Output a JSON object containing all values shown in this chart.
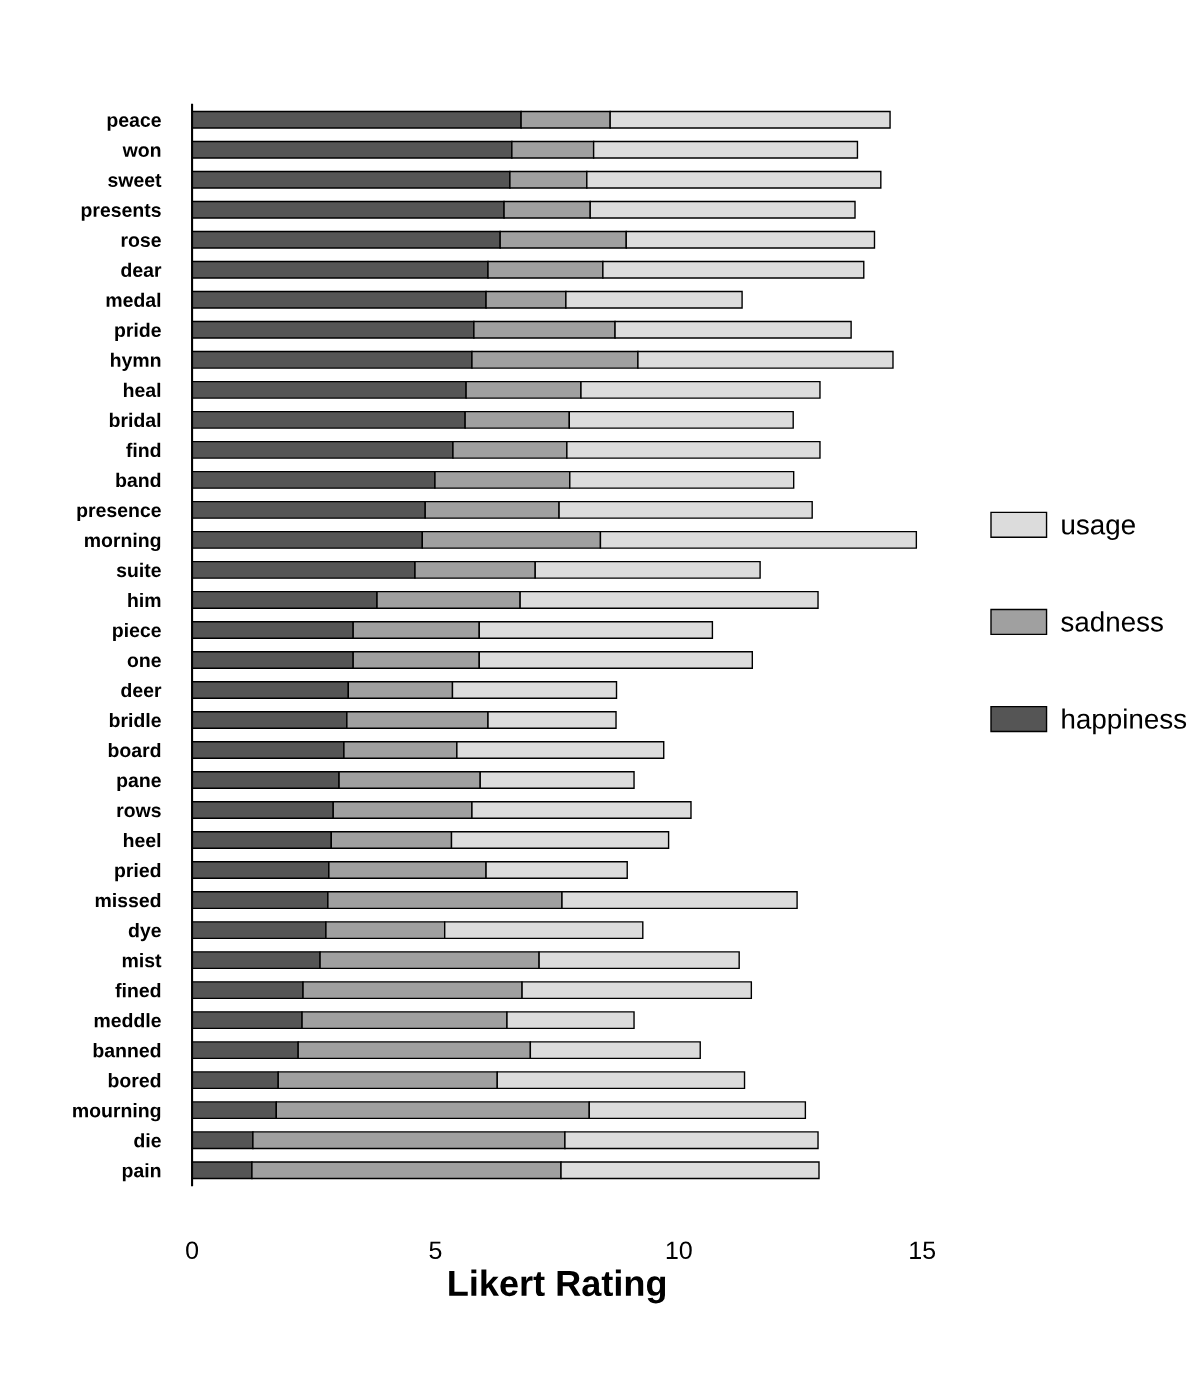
{
  "chart_data": {
    "type": "bar",
    "orientation": "horizontal",
    "stacked": true,
    "xlabel": "Likert Rating",
    "xlim": [
      0,
      15
    ],
    "xticks": [
      0,
      5,
      10,
      15
    ],
    "legend": "right",
    "grid": false,
    "categories": [
      "peace",
      "won",
      "sweet",
      "presents",
      "rose",
      "dear",
      "medal",
      "pride",
      "hymn",
      "heal",
      "bridal",
      "find",
      "band",
      "presence",
      "morning",
      "suite",
      "him",
      "piece",
      "one",
      "deer",
      "bridle",
      "board",
      "pane",
      "rows",
      "heel",
      "pried",
      "missed",
      "dye",
      "mist",
      "fined",
      "meddle",
      "banned",
      "bored",
      "mourning",
      "die",
      "pain"
    ],
    "series": [
      {
        "name": "happiness",
        "color": "#555555",
        "values": [
          6.76,
          6.57,
          6.53,
          6.41,
          6.33,
          6.08,
          6.04,
          5.79,
          5.75,
          5.63,
          5.61,
          5.36,
          4.99,
          4.79,
          4.73,
          4.58,
          3.8,
          3.31,
          3.31,
          3.21,
          3.18,
          3.12,
          3.02,
          2.9,
          2.86,
          2.81,
          2.79,
          2.75,
          2.63,
          2.28,
          2.26,
          2.18,
          1.77,
          1.73,
          1.25,
          1.23
        ]
      },
      {
        "name": "sadness",
        "color": "#a0a0a0",
        "values": [
          1.83,
          1.68,
          1.58,
          1.77,
          2.59,
          2.36,
          1.64,
          2.9,
          3.41,
          2.36,
          2.14,
          2.34,
          2.77,
          2.75,
          3.66,
          2.47,
          2.94,
          2.59,
          2.59,
          2.14,
          2.9,
          2.32,
          2.9,
          2.85,
          2.47,
          3.23,
          4.81,
          2.44,
          4.5,
          4.5,
          4.21,
          4.77,
          4.5,
          6.43,
          6.41,
          6.35
        ]
      },
      {
        "name": "usage",
        "color": "#dcdcdc",
        "values": [
          5.75,
          5.42,
          6.04,
          5.44,
          5.1,
          5.36,
          3.62,
          4.85,
          5.24,
          4.91,
          4.6,
          5.2,
          4.6,
          5.2,
          6.49,
          4.62,
          6.12,
          4.79,
          5.61,
          3.37,
          2.63,
          4.25,
          3.16,
          4.5,
          4.46,
          2.9,
          4.83,
          4.07,
          4.11,
          4.71,
          2.61,
          3.49,
          5.08,
          4.44,
          5.2,
          5.3
        ]
      }
    ]
  }
}
